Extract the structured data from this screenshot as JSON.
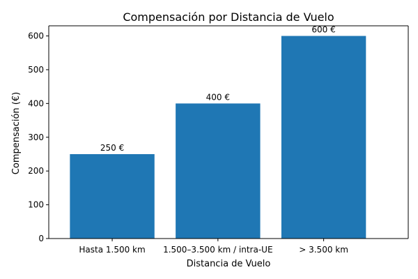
{
  "chart_data": {
    "type": "bar",
    "title": "Compensación por Distancia de Vuelo",
    "xlabel": "Distancia de Vuelo",
    "ylabel": "Compensación (€)",
    "categories": [
      "Hasta 1.500 km",
      "1.500–3.500 km / intra-UE",
      "> 3.500 km"
    ],
    "values": [
      250,
      400,
      600
    ],
    "data_labels": [
      "250 €",
      "400 €",
      "600 €"
    ],
    "ylim": [
      0,
      630
    ],
    "yticks": [
      0,
      100,
      200,
      300,
      400,
      500,
      600
    ],
    "bar_color": "#1f77b4",
    "grid": false,
    "legend": "none"
  }
}
